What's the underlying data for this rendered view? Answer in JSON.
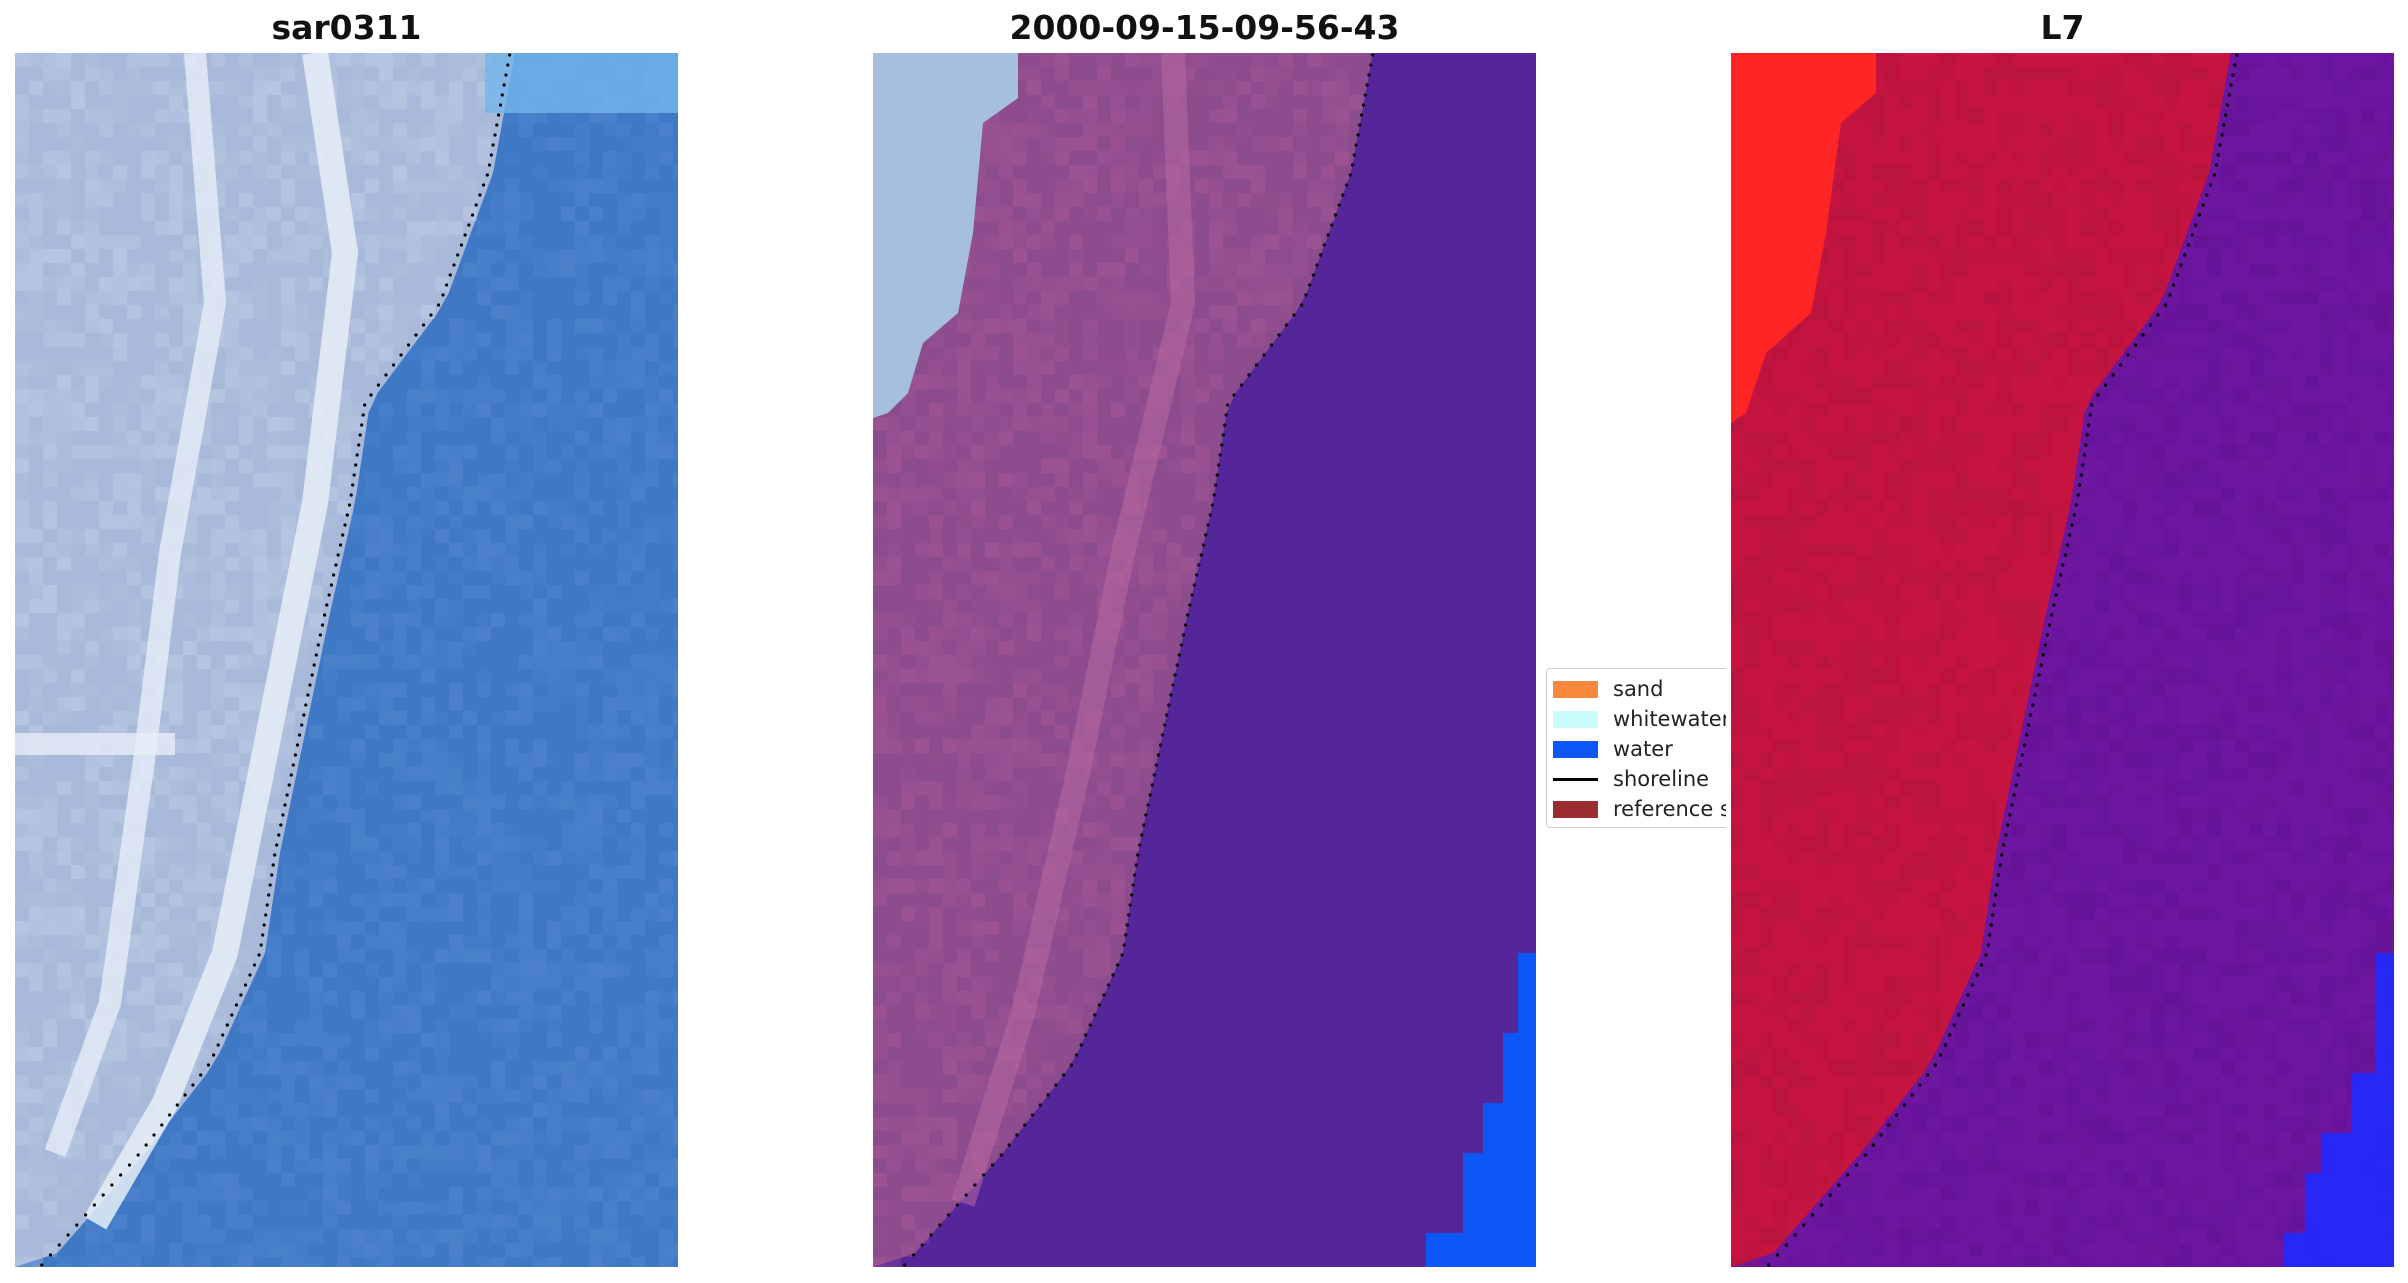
{
  "panels": [
    {
      "title": "sar0311",
      "scheme": "rgb"
    },
    {
      "title": "2000-09-15-09-56-43",
      "scheme": "classified"
    },
    {
      "title": "L7",
      "scheme": "nir"
    }
  ],
  "legend": {
    "items": [
      {
        "label": "sand",
        "color": "#f7883c",
        "kind": "patch"
      },
      {
        "label": "whitewater",
        "color": "#c8fbf9",
        "kind": "patch"
      },
      {
        "label": "water",
        "color": "#0b56f5",
        "kind": "patch"
      },
      {
        "label": "shoreline",
        "color": "#000000",
        "kind": "line"
      },
      {
        "label": "reference shoreline",
        "color": "#9b2d32",
        "kind": "patch"
      }
    ]
  },
  "colors": {
    "rgb_land": "#a8b9d9",
    "rgb_white": "#e6eef7",
    "rgb_water": "#3f79c6",
    "class_land": "#8d4c8e",
    "class_white": "#a5bfdc",
    "class_water": "#55259a",
    "class_bright_water": "#0b56f5",
    "nir_red": "#ff2525",
    "nir_land": "#c4143f",
    "nir_water": "#6d169f",
    "nir_blue": "#1f2aff",
    "shoreline_dots": "#000000"
  }
}
